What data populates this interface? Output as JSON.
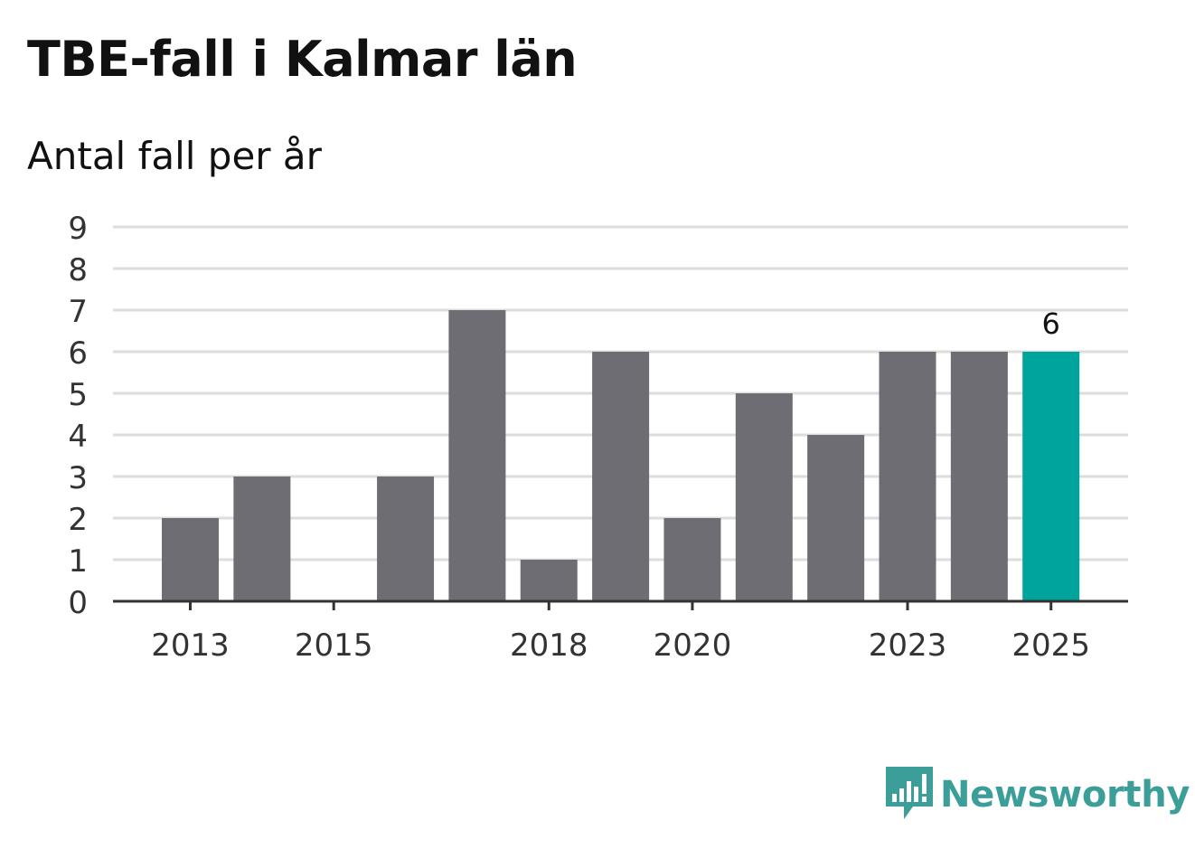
{
  "chart_data": {
    "type": "bar",
    "title": "TBE-fall i Kalmar län",
    "subtitle": "Antal fall per år",
    "categories": [
      2013,
      2014,
      2015,
      2016,
      2017,
      2018,
      2019,
      2020,
      2021,
      2022,
      2023,
      2024,
      2025
    ],
    "values": [
      2,
      3,
      0,
      3,
      7,
      1,
      6,
      2,
      5,
      4,
      6,
      6,
      6
    ],
    "xtick_labels": [
      "2013",
      "2015",
      "2018",
      "2020",
      "2023",
      "2025"
    ],
    "ytick_labels": [
      "0",
      "1",
      "2",
      "3",
      "4",
      "5",
      "6",
      "7",
      "8",
      "9"
    ],
    "ylim": [
      0,
      9
    ],
    "xlabel": "",
    "ylabel": "",
    "grid": true,
    "highlight_index": 12,
    "highlight_label": "6",
    "colors": {
      "bar": "#6e6d73",
      "highlight": "#00a49c",
      "grid": "#dddddd",
      "axis": "#333333"
    }
  },
  "branding": {
    "name": "Newsworthy",
    "icon": "newsworthy-logo-icon",
    "color": "#3b9e98"
  }
}
